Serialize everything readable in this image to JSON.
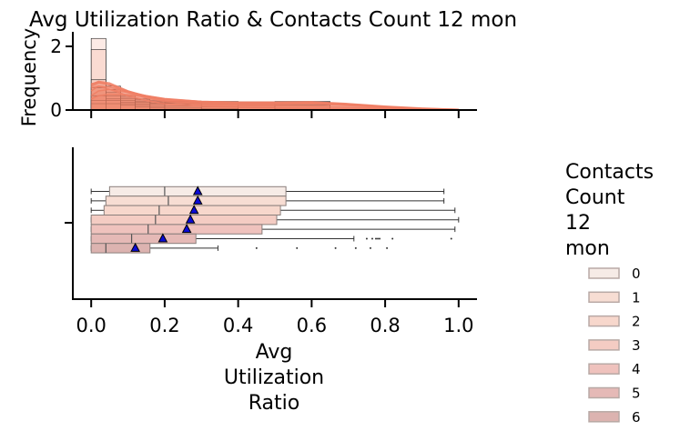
{
  "chart_data": {
    "type": "boxplot_with_histogram",
    "title": "Avg Utilization Ratio & Contacts Count 12 mon",
    "xlabel_lines": [
      "Avg",
      "Utilization",
      "Ratio"
    ],
    "x_ticks": [
      "0.0",
      "0.2",
      "0.4",
      "0.6",
      "0.8",
      "1.0"
    ],
    "xlim": [
      -0.05,
      1.05
    ],
    "top_panel": {
      "ylabel": "Frequency",
      "y_ticks": [
        "0",
        "2"
      ],
      "ylim": [
        0,
        2.4
      ],
      "bins": [
        {
          "x0": 0.0,
          "x1": 0.04,
          "heights": [
            2.25,
            1.9,
            0.95,
            0.7,
            0.45,
            0.3,
            0.2
          ]
        },
        {
          "x0": 0.04,
          "x1": 0.08,
          "heights": [
            0.75,
            0.65,
            0.55,
            0.45,
            0.35,
            0.3,
            0.2
          ]
        },
        {
          "x0": 0.08,
          "x1": 0.12,
          "heights": [
            0.45,
            0.4,
            0.35,
            0.3,
            0.25,
            0.2,
            0.15
          ]
        },
        {
          "x0": 0.12,
          "x1": 0.16,
          "heights": [
            0.35,
            0.32,
            0.28,
            0.25,
            0.2,
            0.15,
            0.1
          ]
        },
        {
          "x0": 0.16,
          "x1": 0.2,
          "heights": [
            0.3,
            0.27,
            0.25,
            0.22,
            0.18,
            0.12,
            0.08
          ]
        },
        {
          "x0": 0.2,
          "x1": 0.3,
          "heights": [
            0.28,
            0.26,
            0.24,
            0.22,
            0.18,
            0.12,
            0.06
          ]
        },
        {
          "x0": 0.3,
          "x1": 0.4,
          "heights": [
            0.27,
            0.25,
            0.23,
            0.21,
            0.17,
            0.1,
            0.04
          ]
        },
        {
          "x0": 0.4,
          "x1": 0.5,
          "heights": [
            0.26,
            0.25,
            0.22,
            0.2,
            0.16,
            0.08,
            0.02
          ]
        },
        {
          "x0": 0.5,
          "x1": 0.65,
          "heights": [
            0.27,
            0.25,
            0.22,
            0.2,
            0.15,
            0.05,
            0.02
          ]
        }
      ],
      "kde_curves": [
        {
          "x": [
            0.0,
            0.02,
            0.05,
            0.1,
            0.15,
            0.2,
            0.3,
            0.4,
            0.5,
            0.6,
            0.7,
            0.8,
            0.9,
            1.0
          ],
          "y": [
            0.35,
            0.45,
            0.5,
            0.48,
            0.42,
            0.35,
            0.27,
            0.25,
            0.25,
            0.26,
            0.2,
            0.12,
            0.06,
            0.02
          ]
        },
        {
          "x": [
            0.0,
            0.02,
            0.05,
            0.1,
            0.15,
            0.2,
            0.3,
            0.4,
            0.5,
            0.6,
            0.7,
            0.8,
            0.9,
            1.0
          ],
          "y": [
            0.45,
            0.6,
            0.65,
            0.55,
            0.45,
            0.36,
            0.27,
            0.24,
            0.24,
            0.25,
            0.19,
            0.11,
            0.05,
            0.02
          ]
        },
        {
          "x": [
            0.0,
            0.02,
            0.05,
            0.1,
            0.15,
            0.2,
            0.3,
            0.4,
            0.5,
            0.6,
            0.7,
            0.8,
            0.9,
            1.0
          ],
          "y": [
            0.6,
            0.75,
            0.72,
            0.58,
            0.45,
            0.35,
            0.25,
            0.22,
            0.22,
            0.24,
            0.18,
            0.1,
            0.04,
            0.01
          ]
        },
        {
          "x": [
            0.0,
            0.02,
            0.05,
            0.1,
            0.15,
            0.2,
            0.3,
            0.4,
            0.5,
            0.6,
            0.7,
            0.8,
            0.9,
            1.0
          ],
          "y": [
            0.75,
            0.85,
            0.8,
            0.6,
            0.44,
            0.33,
            0.22,
            0.2,
            0.2,
            0.22,
            0.16,
            0.09,
            0.04,
            0.01
          ]
        },
        {
          "x": [
            0.0,
            0.02,
            0.05,
            0.1,
            0.15,
            0.2,
            0.3,
            0.4,
            0.5,
            0.6,
            0.7,
            0.8,
            0.9,
            1.0
          ],
          "y": [
            0.8,
            0.9,
            0.85,
            0.6,
            0.42,
            0.3,
            0.2,
            0.18,
            0.18,
            0.2,
            0.14,
            0.08,
            0.03,
            0.01
          ]
        },
        {
          "x": [
            0.0,
            0.02,
            0.05,
            0.1,
            0.15,
            0.2,
            0.3,
            0.4,
            0.5,
            0.6,
            0.7,
            0.8,
            0.9,
            1.0
          ],
          "y": [
            0.82,
            0.88,
            0.8,
            0.55,
            0.38,
            0.27,
            0.17,
            0.14,
            0.13,
            0.12,
            0.08,
            0.05,
            0.02,
            0.0
          ]
        },
        {
          "x": [
            0.0,
            0.02,
            0.05,
            0.1,
            0.15,
            0.2,
            0.3,
            0.4,
            0.5,
            0.6,
            0.7,
            0.8,
            0.9,
            1.0
          ],
          "y": [
            0.7,
            0.75,
            0.65,
            0.45,
            0.3,
            0.2,
            0.12,
            0.09,
            0.07,
            0.05,
            0.03,
            0.02,
            0.01,
            0.0
          ]
        }
      ]
    },
    "boxes": [
      {
        "group": "0",
        "whisker_low": 0.0,
        "q1": 0.05,
        "median": 0.2,
        "q3": 0.53,
        "whisker_high": 0.96,
        "mean": 0.29,
        "outliers": [],
        "color": "#f6ebe6"
      },
      {
        "group": "1",
        "whisker_low": 0.0,
        "q1": 0.04,
        "median": 0.21,
        "q3": 0.53,
        "whisker_high": 0.96,
        "mean": 0.29,
        "outliers": [],
        "color": "#f7ddd3"
      },
      {
        "group": "2",
        "whisker_low": 0.0,
        "q1": 0.035,
        "median": 0.185,
        "q3": 0.515,
        "whisker_high": 0.99,
        "mean": 0.28,
        "outliers": [],
        "color": "#f7d7cc"
      },
      {
        "group": "3",
        "whisker_low": 0.0,
        "q1": 0.0,
        "median": 0.175,
        "q3": 0.505,
        "whisker_high": 1.0,
        "mean": 0.27,
        "outliers": [],
        "color": "#f4ccc3"
      },
      {
        "group": "4",
        "whisker_low": 0.0,
        "q1": 0.0,
        "median": 0.155,
        "q3": 0.465,
        "whisker_high": 0.99,
        "mean": 0.26,
        "outliers": [],
        "color": "#efc2bd"
      },
      {
        "group": "5",
        "whisker_low": 0.0,
        "q1": 0.0,
        "median": 0.11,
        "q3": 0.285,
        "whisker_high": 0.715,
        "mean": 0.195,
        "outliers": [
          0.75,
          0.765,
          0.775,
          0.78,
          0.785,
          0.82,
          0.98
        ],
        "color": "#e5b9b6"
      },
      {
        "group": "6",
        "whisker_low": 0.0,
        "q1": 0.0,
        "median": 0.04,
        "q3": 0.16,
        "whisker_high": 0.345,
        "mean": 0.12,
        "outliers": [
          0.45,
          0.56,
          0.665,
          0.72,
          0.76,
          0.805
        ],
        "color": "#dcb3b0"
      }
    ],
    "legend": {
      "title_lines": [
        "Contacts",
        "Count",
        "12",
        "mon"
      ],
      "entries": [
        {
          "label": "0",
          "color": "#f6ebe6"
        },
        {
          "label": "1",
          "color": "#f7ddd3"
        },
        {
          "label": "2",
          "color": "#f7d7cc"
        },
        {
          "label": "3",
          "color": "#f4ccc3"
        },
        {
          "label": "4",
          "color": "#efc2bd"
        },
        {
          "label": "5",
          "color": "#e5b9b6"
        },
        {
          "label": "6",
          "color": "#dcb3b0"
        }
      ],
      "placement": "right"
    },
    "mean_marker_color": "#0a0ad6",
    "kde_color": "#f07f65",
    "hist_color": "#f6b3a3"
  }
}
